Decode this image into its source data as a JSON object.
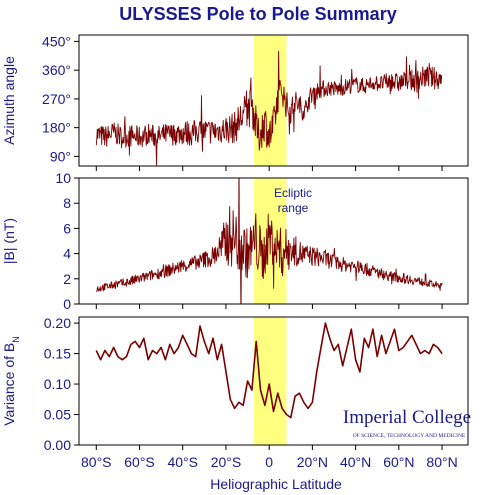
{
  "chart_data": {
    "title": "ULYSSES Pole to Pole Summary",
    "xlabel": "Heliographic Latitude",
    "x_ticks": [
      -80,
      -60,
      -40,
      -20,
      0,
      20,
      40,
      60,
      80
    ],
    "x_tick_labels": [
      "80°S",
      "60°S",
      "40°S",
      "20°S",
      "0",
      "20°N",
      "40°N",
      "60°N",
      "80°N"
    ],
    "xlim": [
      -88,
      92
    ],
    "highlight": {
      "x_range": [
        -7,
        8
      ],
      "color": "#ffff80"
    },
    "line_color": "#7a0000",
    "panels": [
      {
        "type": "line",
        "ylabel": "Azimuth angle",
        "ylim": [
          60,
          470
        ],
        "y_ticks": [
          90,
          180,
          270,
          360,
          450
        ],
        "y_tick_labels": [
          "90°",
          "180°",
          "270°",
          "360°",
          "450°"
        ],
        "series": [
          {
            "x": [
              -80,
              -76,
              -72,
              -68,
              -64,
              -60,
              -56,
              -52,
              -48,
              -44,
              -40,
              -36,
              -32,
              -28,
              -24,
              -20,
              -16,
              -12,
              -8,
              -5,
              -2,
              0,
              2,
              4,
              6,
              8,
              10,
              12,
              14,
              16,
              20,
              24,
              28,
              32,
              36,
              40,
              44,
              48,
              52,
              56,
              60,
              64,
              68,
              72,
              76,
              80
            ],
            "values": [
              160,
              150,
              165,
              150,
              155,
              150,
              160,
              150,
              158,
              160,
              165,
              162,
              170,
              168,
              170,
              175,
              180,
              220,
              250,
              150,
              200,
              150,
              180,
              275,
              300,
              250,
              230,
              260,
              250,
              230,
              290,
              300,
              305,
              300,
              310,
              315,
              310,
              320,
              318,
              325,
              320,
              330,
              325,
              340,
              335,
              335
            ],
            "amplitude": [
              35,
              35,
              35,
              35,
              35,
              35,
              35,
              35,
              35,
              35,
              40,
              40,
              40,
              40,
              40,
              45,
              50,
              60,
              60,
              60,
              60,
              60,
              60,
              50,
              45,
              45,
              40,
              40,
              35,
              30,
              30,
              28,
              25,
              25,
              25,
              25,
              25,
              25,
              25,
              30,
              30,
              30,
              35,
              35,
              35,
              35
            ]
          }
        ]
      },
      {
        "type": "line",
        "ylabel": "|B| (nT)",
        "ylim": [
          0,
          10
        ],
        "y_ticks": [
          0,
          2,
          4,
          6,
          8,
          10
        ],
        "y_tick_labels": [
          "0",
          "2",
          "4",
          "6",
          "8",
          "10"
        ],
        "annotation": "Ecliptic range",
        "series": [
          {
            "x": [
              -80,
              -72,
              -64,
              -56,
              -48,
              -40,
              -32,
              -26,
              -22,
              -18,
              -14,
              -10,
              -6,
              -3,
              0,
              3,
              6,
              9,
              12,
              16,
              20,
              26,
              32,
              40,
              48,
              56,
              64,
              72,
              80
            ],
            "values": [
              1.2,
              1.5,
              1.8,
              2.2,
              2.6,
              3.0,
              3.4,
              3.8,
              4.5,
              5.5,
              4.8,
              4.0,
              5.0,
              3.5,
              5.5,
              4.5,
              4.0,
              4.5,
              4.2,
              3.9,
              3.8,
              3.6,
              3.2,
              3.0,
              2.6,
              2.2,
              2.0,
              1.7,
              1.4
            ],
            "amplitude": [
              0.3,
              0.3,
              0.4,
              0.4,
              0.5,
              0.5,
              0.6,
              0.8,
              1.5,
              2.5,
              2.5,
              2.0,
              2.5,
              2.0,
              2.0,
              2.0,
              2.0,
              1.5,
              1.2,
              0.9,
              0.8,
              0.7,
              0.6,
              0.5,
              0.5,
              0.4,
              0.4,
              0.3,
              0.3
            ]
          }
        ]
      },
      {
        "type": "line",
        "ylabel": "Variance of B",
        "ylabel_subscript": "N",
        "ylim": [
          0,
          0.21
        ],
        "y_ticks": [
          0,
          0.05,
          0.1,
          0.15,
          0.2
        ],
        "y_tick_labels": [
          "0.00",
          "0.05",
          "0.10",
          "0.15",
          "0.20"
        ],
        "series": [
          {
            "x": [
              -80,
              -78,
              -76,
              -74,
              -72,
              -70,
              -68,
              -66,
              -64,
              -62,
              -60,
              -58,
              -56,
              -54,
              -52,
              -50,
              -48,
              -46,
              -44,
              -42,
              -40,
              -38,
              -36,
              -34,
              -32,
              -30,
              -28,
              -26,
              -24,
              -22,
              -20,
              -18,
              -16,
              -14,
              -12,
              -10,
              -8,
              -6,
              -4,
              -2,
              0,
              2,
              4,
              6,
              8,
              10,
              12,
              14,
              16,
              18,
              20,
              22,
              24,
              26,
              28,
              30,
              32,
              34,
              36,
              38,
              40,
              42,
              44,
              46,
              48,
              50,
              52,
              54,
              56,
              58,
              60,
              62,
              64,
              66,
              68,
              70,
              72,
              74,
              76,
              78,
              80
            ],
            "values": [
              0.155,
              0.14,
              0.155,
              0.145,
              0.16,
              0.145,
              0.14,
              0.145,
              0.165,
              0.17,
              0.16,
              0.175,
              0.14,
              0.155,
              0.15,
              0.16,
              0.14,
              0.165,
              0.15,
              0.16,
              0.18,
              0.165,
              0.15,
              0.145,
              0.195,
              0.17,
              0.15,
              0.175,
              0.14,
              0.165,
              0.12,
              0.075,
              0.06,
              0.07,
              0.065,
              0.105,
              0.09,
              0.17,
              0.09,
              0.065,
              0.1,
              0.055,
              0.085,
              0.06,
              0.05,
              0.045,
              0.08,
              0.085,
              0.07,
              0.06,
              0.07,
              0.12,
              0.16,
              0.2,
              0.175,
              0.155,
              0.165,
              0.13,
              0.16,
              0.19,
              0.14,
              0.12,
              0.175,
              0.16,
              0.19,
              0.145,
              0.18,
              0.15,
              0.17,
              0.19,
              0.155,
              0.16,
              0.17,
              0.18,
              0.165,
              0.15,
              0.155,
              0.15,
              0.165,
              0.16,
              0.15
            ],
            "amplitude": null
          }
        ]
      }
    ]
  },
  "logo": {
    "line1": "Imperial College",
    "line2": "OF SCIENCE, TECHNOLOGY AND MEDICINE"
  }
}
